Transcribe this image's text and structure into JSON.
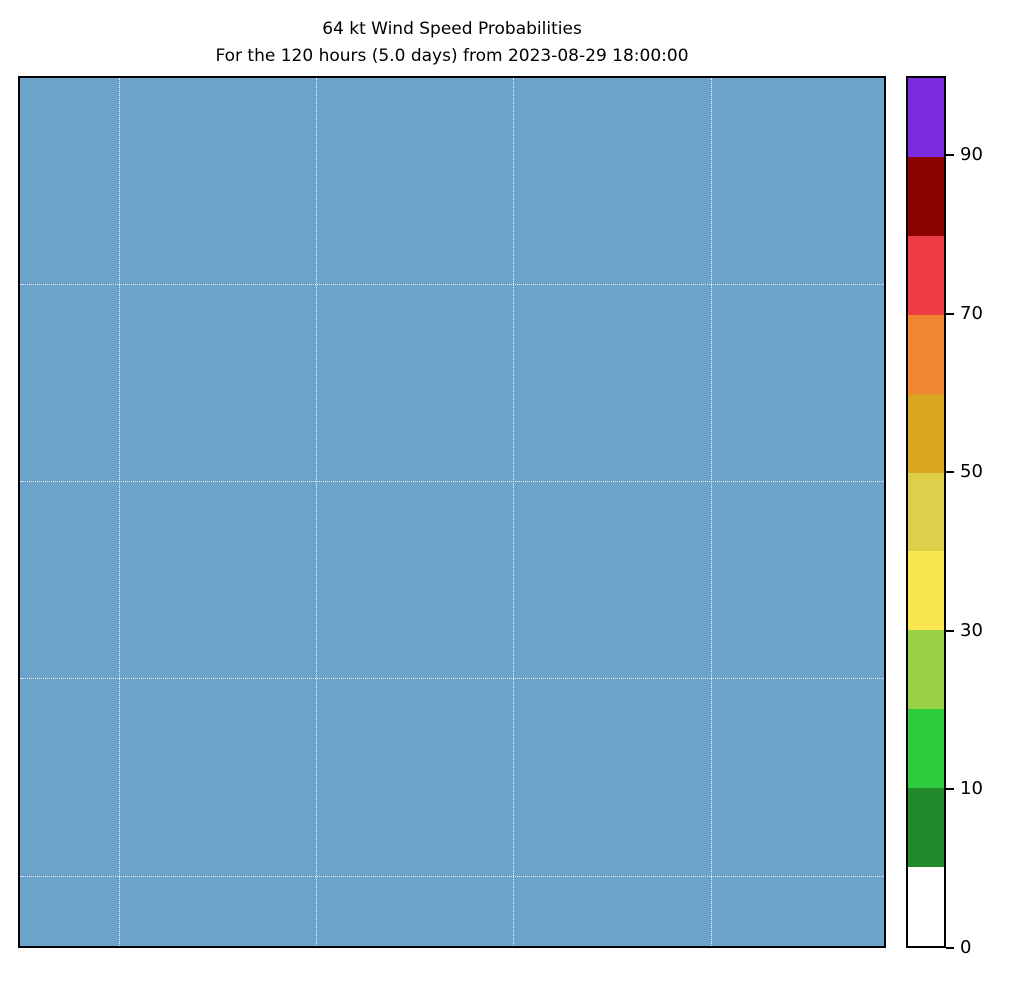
{
  "figure": {
    "title_line1": "64 kt Wind Speed Probabilities",
    "title_line2": "For the 120 hours (5.0 days) from 2023-08-29 18:00:00"
  },
  "chart_data": {
    "type": "heatmap",
    "title": "64 kt Wind Speed Probabilities",
    "subtitle": "For the 120 hours (5.0 days) from 2023-08-29 18:00:00",
    "observation": "Map region shows only uniform ocean fill; no probability contours above the lowest colorbar level are visible",
    "map": {
      "ocean_color": "#6ba3cb",
      "gridline_color": "#ffffff",
      "gridline_style": "dotted",
      "gridline_fracs_x": [
        0.115,
        0.343,
        0.571,
        0.8
      ],
      "gridline_fracs_y": [
        0.237,
        0.464,
        0.691,
        0.919
      ]
    },
    "colorbar": {
      "orientation": "vertical",
      "boundaries": [
        0,
        5,
        10,
        20,
        30,
        40,
        50,
        60,
        70,
        80,
        90,
        100
      ],
      "colors_bottom_to_top": [
        "#ffffff",
        "#218b2b",
        "#2ecc3d",
        "#98d046",
        "#f9e64e",
        "#ddcf4a",
        "#d9a520",
        "#f0862f",
        "#ef3b45",
        "#8b0000",
        "#7d2be0"
      ],
      "tick_values": [
        0,
        10,
        30,
        50,
        70,
        90
      ]
    }
  }
}
